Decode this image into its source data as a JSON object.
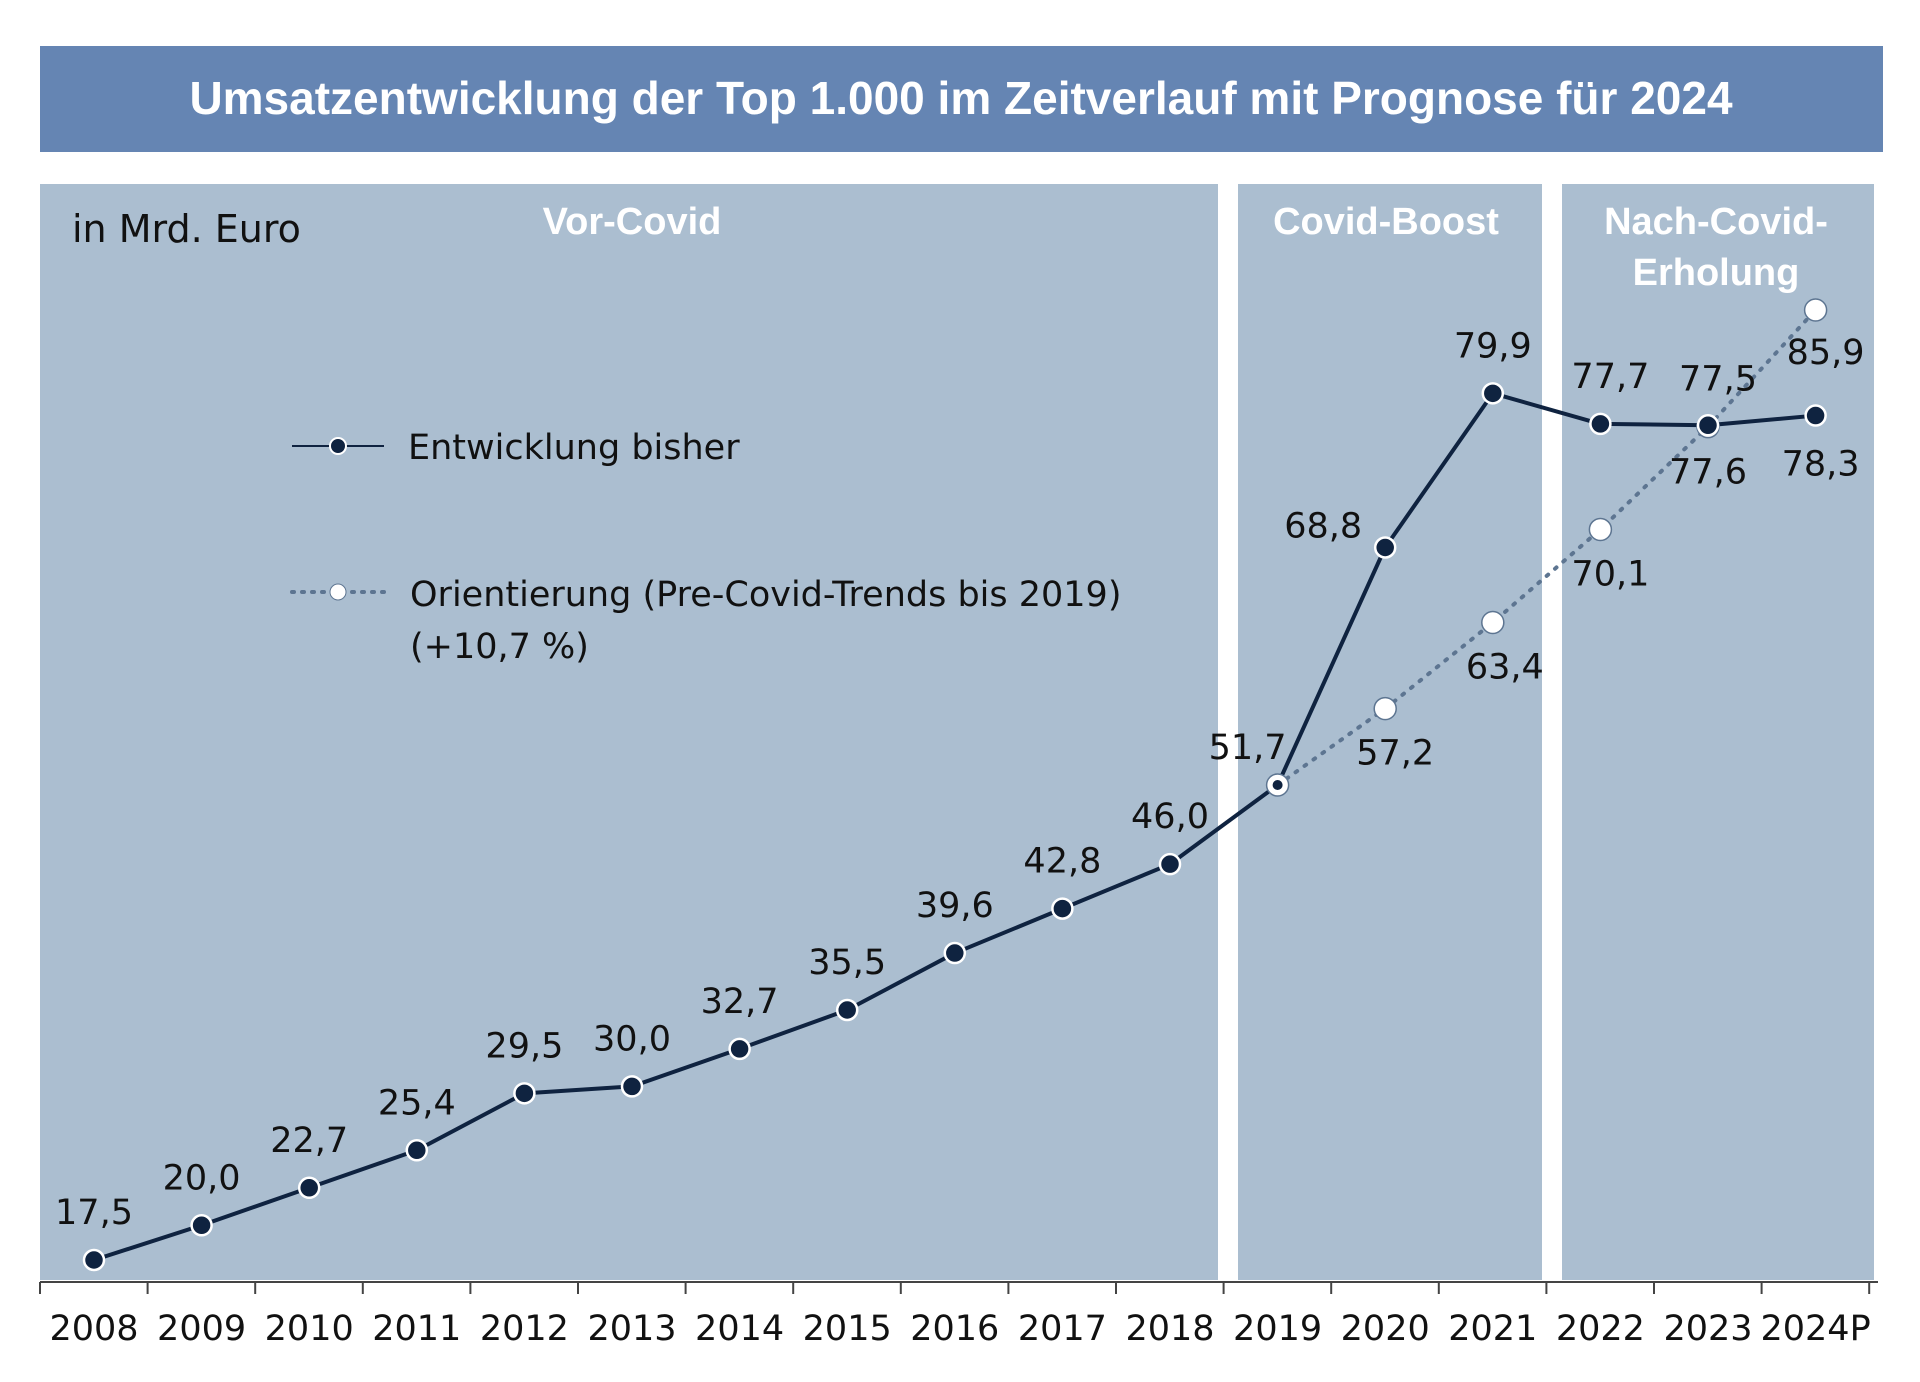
{
  "chart_data": {
    "type": "line",
    "title": "Umsatzentwicklung der Top 1.000 im Zeitverlauf mit Prognose für 2024",
    "unit_label": "in Mrd. Euro",
    "categories": [
      "2008",
      "2009",
      "2010",
      "2011",
      "2012",
      "2013",
      "2014",
      "2015",
      "2016",
      "2017",
      "2018",
      "2019",
      "2020",
      "2021",
      "2022",
      "2023",
      "2024P"
    ],
    "phases": [
      {
        "label": "Vor-Covid",
        "from": "2008",
        "to": "2018"
      },
      {
        "label": "Covid-Boost",
        "from": "2019",
        "to": "2021"
      },
      {
        "label": "Nach-Covid-Erholung",
        "lines": [
          "Nach-Covid-",
          "Erholung"
        ],
        "from": "2022",
        "to": "2024P"
      }
    ],
    "series": [
      {
        "name": "Entwicklung bisher",
        "style": "solid",
        "color": "#0f2340",
        "x": [
          "2008",
          "2009",
          "2010",
          "2011",
          "2012",
          "2013",
          "2014",
          "2015",
          "2016",
          "2017",
          "2018",
          "2019",
          "2020",
          "2021",
          "2022",
          "2023",
          "2024P"
        ],
        "values": [
          17.5,
          20.0,
          22.7,
          25.4,
          29.5,
          30.0,
          32.7,
          35.5,
          39.6,
          42.8,
          46.0,
          51.7,
          68.8,
          79.9,
          77.7,
          77.6,
          78.3
        ],
        "labels": [
          "17,5",
          "20,0",
          "22,7",
          "25,4",
          "29,5",
          "30,0",
          "32,7",
          "35,5",
          "39,6",
          "42,8",
          "46,0",
          "51,7",
          "68,8",
          "79,9",
          "77,7",
          "77,6",
          "78,3"
        ]
      },
      {
        "name": "Orientierung (Pre-Covid-Trends bis 2019)",
        "name_line2": "(+10,7 %)",
        "style": "dotted",
        "color": "#5d7591",
        "x": [
          "2019",
          "2020",
          "2021",
          "2022",
          "2023",
          "2024P"
        ],
        "values": [
          51.7,
          57.2,
          63.4,
          70.1,
          77.5,
          85.9
        ],
        "labels": [
          "",
          "57,2",
          "63,4",
          "70,1",
          "77,5",
          "85,9"
        ]
      }
    ],
    "ylim": [
      15,
      90
    ],
    "grid": false,
    "legend_position": "upper-left",
    "colors": {
      "title_band": "#6585b3",
      "panel": "#abbed0",
      "line": "#0f2340",
      "trend": "#5d7591"
    }
  }
}
